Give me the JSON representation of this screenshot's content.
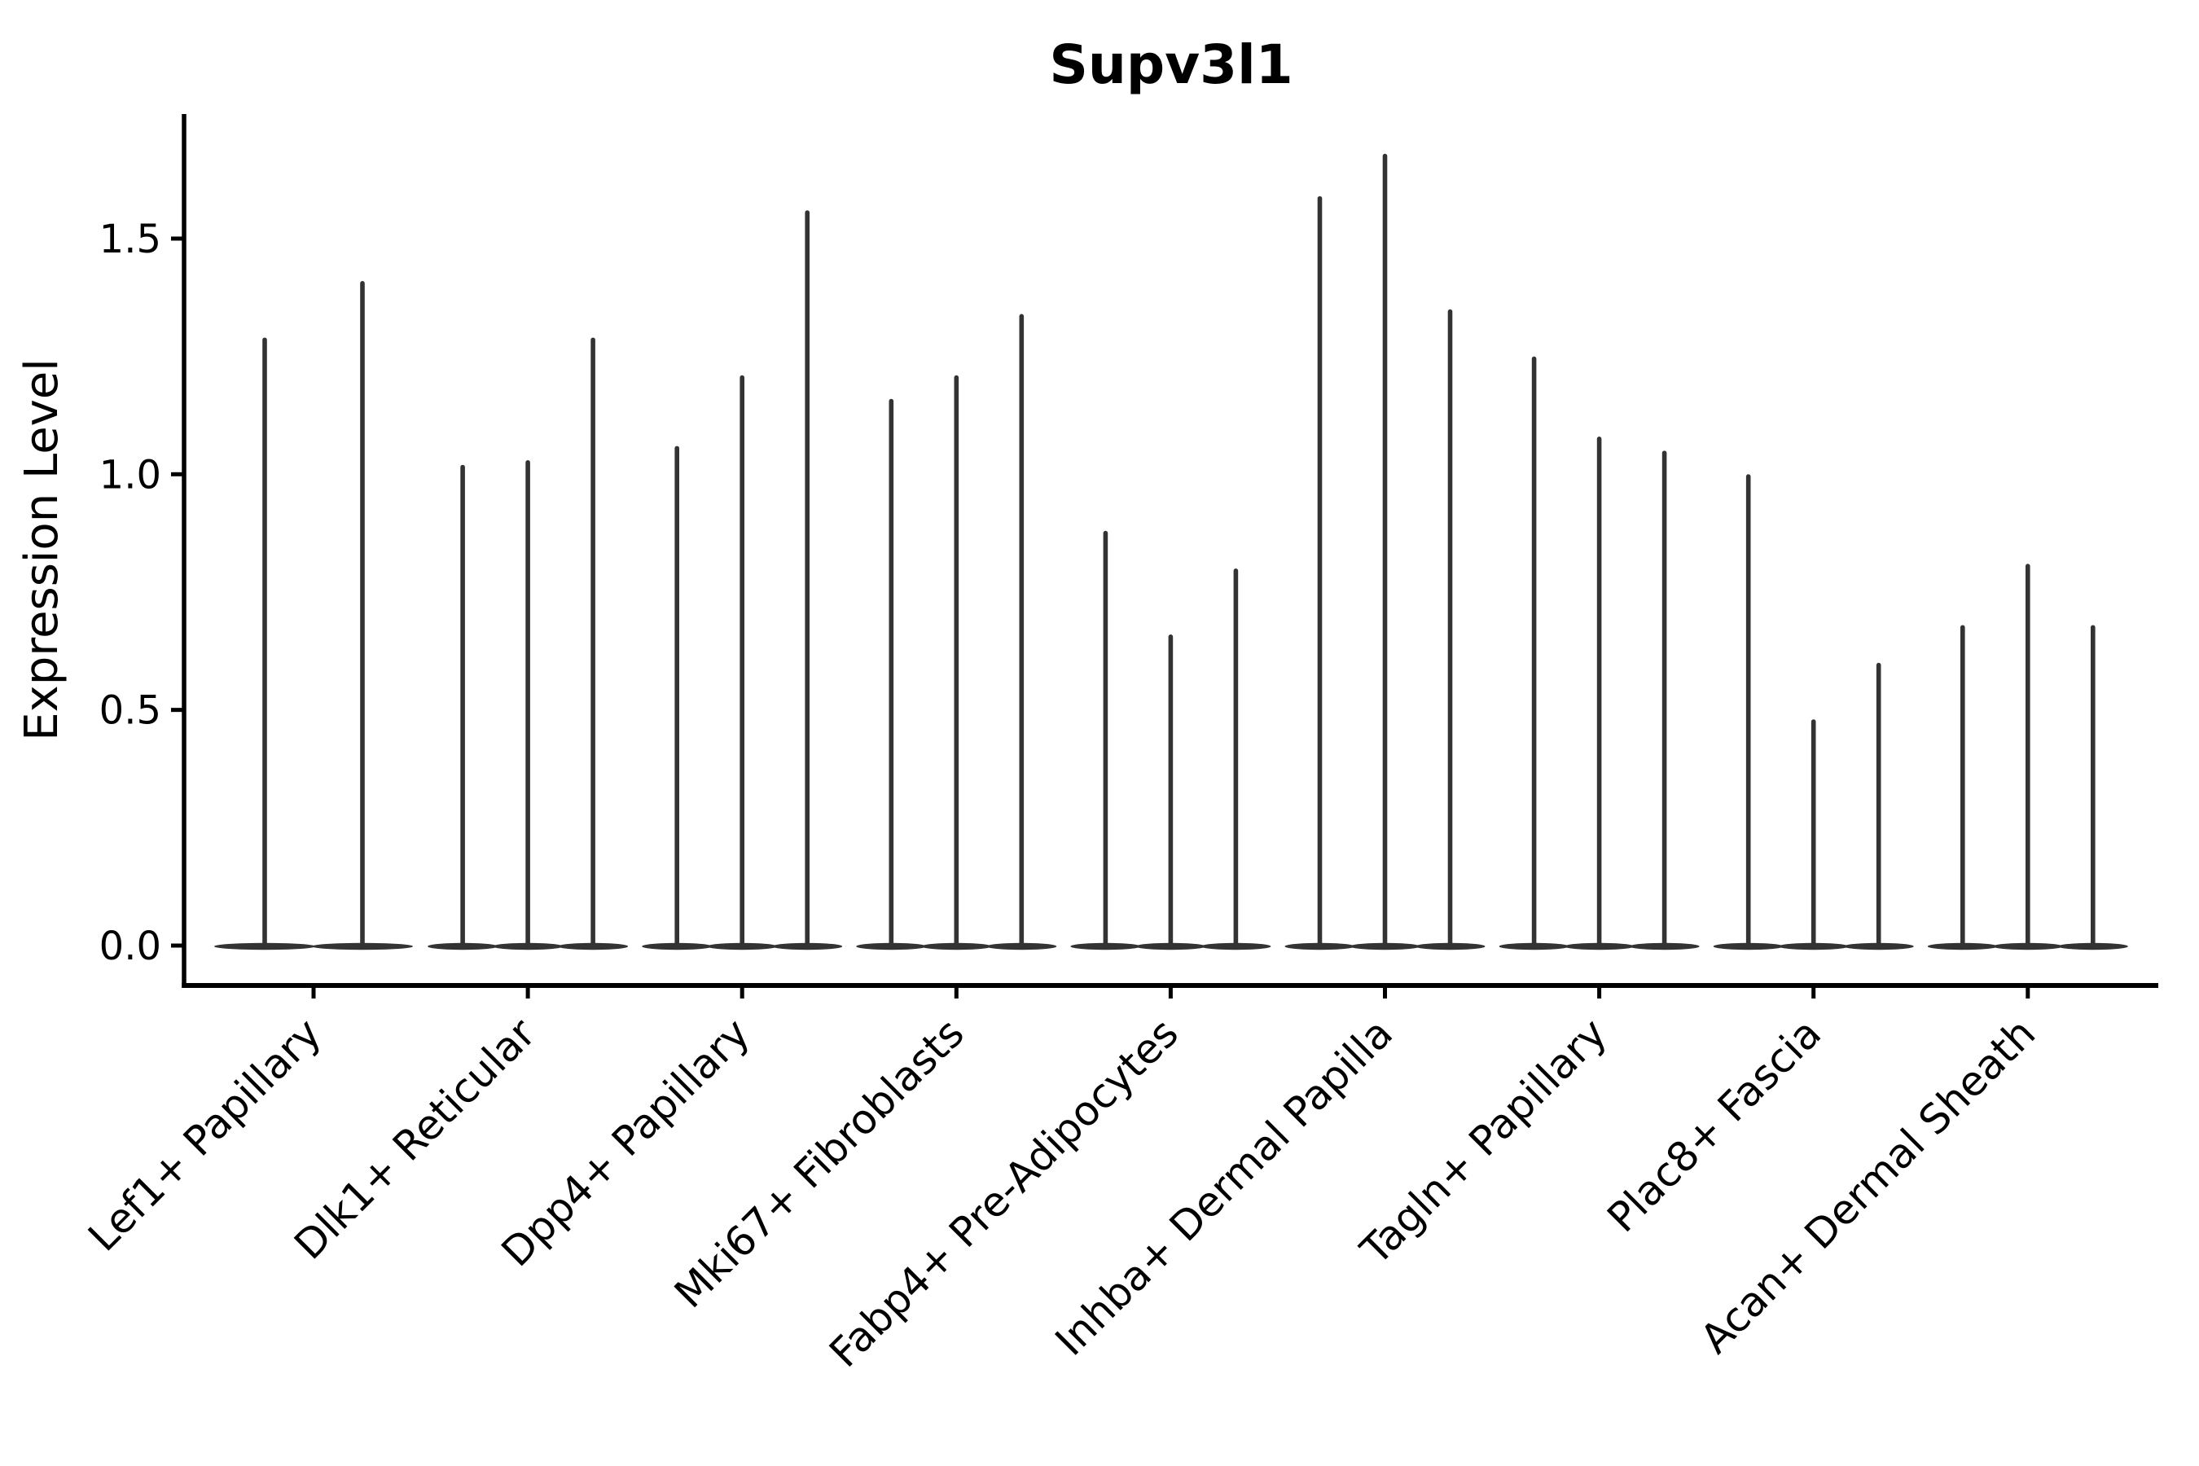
{
  "chart_data": {
    "type": "violin",
    "title": "Supv3l1",
    "ylabel": "Expression Level",
    "xlabel": "",
    "categories": [
      "Lef1+ Papillary",
      "Dlk1+ Reticular",
      "Dpp4+ Papillary",
      "Mki67+ Fibroblasts",
      "Fabp4+ Pre-Adipocytes",
      "Inhba+ Dermal Papilla",
      "Tagln+ Papillary",
      "Plac8+ Fascia",
      "Acan+ Dermal Sheath"
    ],
    "violin_max_values": [
      [
        1.29,
        1.41
      ],
      [
        1.02,
        1.03,
        1.29
      ],
      [
        1.06,
        1.21,
        1.56
      ],
      [
        1.16,
        1.21,
        1.34
      ],
      [
        0.88,
        0.66,
        0.8
      ],
      [
        1.59,
        1.68,
        1.35
      ],
      [
        1.25,
        1.08,
        1.05
      ],
      [
        1.0,
        0.48,
        0.6
      ],
      [
        0.68,
        0.81,
        0.68
      ]
    ],
    "baseline_value": 0.0,
    "ytick_values": [
      0.0,
      0.5,
      1.0,
      1.5
    ],
    "ytick_labels": [
      "0.0",
      "0.5",
      "1.0",
      "1.5"
    ],
    "ylim": [
      -0.08,
      1.77
    ],
    "x_tick_label_rotation_deg": 45,
    "grid": "off",
    "legend": "none",
    "colors": {
      "violin": "#333333",
      "axis": "#000000",
      "text": "#000000",
      "background": "#ffffff"
    }
  }
}
